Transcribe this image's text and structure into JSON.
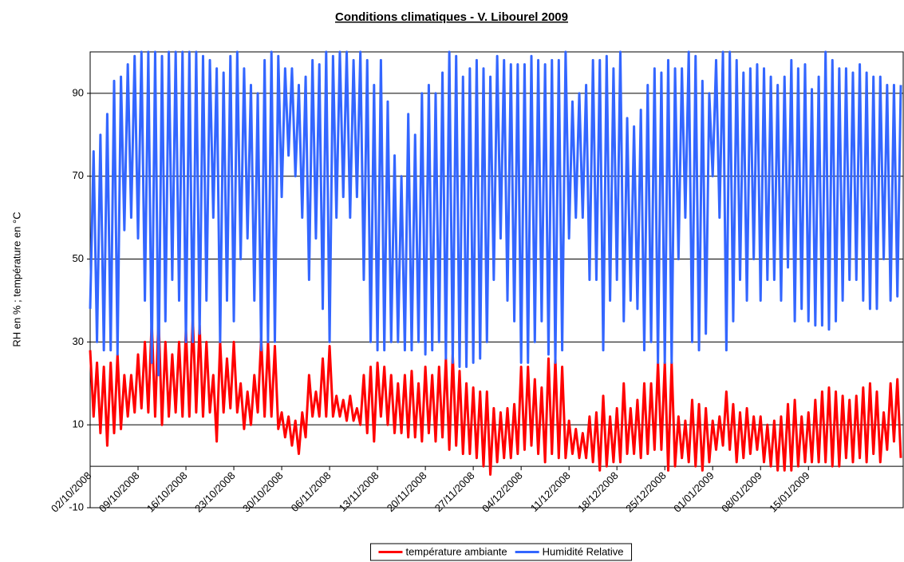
{
  "chart_data": {
    "type": "line",
    "title": "Conditions climatiques - V. Libourel 2009",
    "y_label": "RH en % ; température en °C",
    "x": [
      "02/10/2008",
      null,
      null,
      null,
      null,
      null,
      null,
      null,
      null,
      null,
      null,
      null,
      null,
      null,
      "09/10/2008",
      null,
      null,
      null,
      null,
      null,
      null,
      null,
      null,
      null,
      null,
      null,
      null,
      null,
      "16/10/2008",
      null,
      null,
      null,
      null,
      null,
      null,
      null,
      null,
      null,
      null,
      null,
      null,
      null,
      "23/10/2008",
      null,
      null,
      null,
      null,
      null,
      null,
      null,
      null,
      null,
      null,
      null,
      null,
      null,
      "30/10/2008",
      null,
      null,
      null,
      null,
      null,
      null,
      null,
      null,
      null,
      null,
      null,
      null,
      null,
      "06/11/2008",
      null,
      null,
      null,
      null,
      null,
      null,
      null,
      null,
      null,
      null,
      null,
      null,
      null,
      "13/11/2008",
      null,
      null,
      null,
      null,
      null,
      null,
      null,
      null,
      null,
      null,
      null,
      null,
      null,
      "20/11/2008",
      null,
      null,
      null,
      null,
      null,
      null,
      null,
      null,
      null,
      null,
      null,
      null,
      null,
      "27/11/2008",
      null,
      null,
      null,
      null,
      null,
      null,
      null,
      null,
      null,
      null,
      null,
      null,
      null,
      "04/12/2008",
      null,
      null,
      null,
      null,
      null,
      null,
      null,
      null,
      null,
      null,
      null,
      null,
      null,
      "11/12/2008",
      null,
      null,
      null,
      null,
      null,
      null,
      null,
      null,
      null,
      null,
      null,
      null,
      null,
      "18/12/2008",
      null,
      null,
      null,
      null,
      null,
      null,
      null,
      null,
      null,
      null,
      null,
      null,
      null,
      "25/12/2008",
      null,
      null,
      null,
      null,
      null,
      null,
      null,
      null,
      null,
      null,
      null,
      null,
      null,
      "01/01/2009",
      null,
      null,
      null,
      null,
      null,
      null,
      null,
      null,
      null,
      null,
      null,
      null,
      null,
      "08/01/2009",
      null,
      null,
      null,
      null,
      null,
      null,
      null,
      null,
      null,
      null,
      null,
      null,
      null,
      "15/01/2009",
      null,
      null,
      null,
      null,
      null,
      null,
      null,
      null,
      null,
      null,
      null,
      null,
      null,
      null,
      null,
      null,
      null,
      null,
      null,
      null,
      null,
      null,
      null,
      null,
      null,
      null,
      null
    ],
    "series": [
      {
        "name": "température ambiante",
        "color": "#ff0000",
        "values": [
          28,
          12,
          25,
          8,
          24,
          5,
          25,
          8,
          27,
          9,
          22,
          12,
          22,
          13,
          27,
          14,
          30,
          13,
          35,
          12,
          36,
          10,
          30,
          12,
          27,
          13,
          30,
          12,
          33,
          12,
          36,
          13,
          34,
          12,
          30,
          13,
          22,
          6,
          30,
          13,
          26,
          14,
          30,
          13,
          20,
          9,
          18,
          10,
          22,
          13,
          31,
          12,
          30,
          12,
          29,
          9,
          13,
          7,
          12,
          5,
          11,
          3,
          13,
          7,
          22,
          12,
          18,
          12,
          26,
          12,
          29,
          12,
          17,
          12,
          16,
          11,
          17,
          11,
          14,
          10,
          22,
          8,
          24,
          6,
          25,
          12,
          24,
          10,
          22,
          8,
          20,
          8,
          22,
          7,
          23,
          7,
          20,
          6,
          24,
          8,
          22,
          6,
          24,
          7,
          26,
          4,
          27,
          5,
          23,
          3,
          20,
          3,
          19,
          2,
          18,
          0,
          18,
          -2,
          14,
          1,
          13,
          2,
          14,
          2,
          15,
          3,
          24,
          4,
          24,
          5,
          21,
          3,
          19,
          1,
          26,
          3,
          26,
          2,
          24,
          2,
          11,
          3,
          9,
          2,
          8,
          2,
          12,
          1,
          13,
          -1,
          17,
          0,
          12,
          1,
          14,
          1,
          20,
          3,
          14,
          3,
          16,
          2,
          20,
          3,
          20,
          4,
          25,
          4,
          25,
          -1,
          25,
          0,
          12,
          2,
          11,
          1,
          16,
          0,
          15,
          -1,
          14,
          1,
          11,
          4,
          12,
          5,
          18,
          4,
          15,
          1,
          13,
          2,
          14,
          3,
          12,
          4,
          12,
          1,
          10,
          0,
          11,
          -1,
          12,
          -1,
          15,
          -1,
          16,
          0,
          12,
          1,
          13,
          1,
          16,
          1,
          18,
          1,
          19,
          0,
          18,
          0,
          17,
          2,
          16,
          1,
          17,
          2,
          19,
          1,
          20,
          3,
          18,
          1,
          13,
          4,
          20,
          6,
          21,
          2
        ]
      },
      {
        "name": "Humidité Relative",
        "color": "#3366ff",
        "values": [
          38,
          76,
          30,
          80,
          28,
          85,
          28,
          93,
          27,
          94,
          57,
          97,
          60,
          99,
          55,
          100,
          40,
          100,
          25,
          100,
          22,
          99,
          35,
          100,
          45,
          100,
          40,
          100,
          30,
          100,
          30,
          100,
          32,
          99,
          40,
          98,
          60,
          96,
          30,
          95,
          40,
          99,
          35,
          100,
          50,
          96,
          55,
          92,
          40,
          90,
          28,
          98,
          30,
          100,
          30,
          99,
          65,
          96,
          75,
          96,
          70,
          92,
          60,
          94,
          45,
          98,
          55,
          97,
          38,
          100,
          30,
          99,
          60,
          100,
          65,
          100,
          60,
          98,
          65,
          100,
          45,
          98,
          30,
          92,
          28,
          98,
          28,
          88,
          30,
          75,
          30,
          70,
          28,
          85,
          28,
          80,
          30,
          90,
          27,
          92,
          28,
          90,
          30,
          95,
          26,
          100,
          25,
          99,
          24,
          94,
          24,
          96,
          25,
          98,
          26,
          96,
          30,
          94,
          45,
          99,
          55,
          98,
          40,
          97,
          35,
          97,
          25,
          97,
          25,
          99,
          30,
          98,
          35,
          97,
          27,
          98,
          25,
          98,
          28,
          100,
          55,
          88,
          60,
          90,
          60,
          92,
          45,
          98,
          45,
          98,
          28,
          99,
          40,
          96,
          45,
          100,
          35,
          84,
          40,
          82,
          38,
          86,
          28,
          92,
          30,
          96,
          25,
          95,
          25,
          98,
          25,
          96,
          50,
          96,
          60,
          100,
          30,
          99,
          28,
          93,
          32,
          90,
          70,
          98,
          60,
          100,
          28,
          100,
          35,
          98,
          45,
          95,
          40,
          96,
          50,
          97,
          40,
          96,
          45,
          94,
          45,
          92,
          40,
          94,
          48,
          98,
          35,
          96,
          38,
          97,
          35,
          91,
          34,
          94,
          34,
          100,
          33,
          98,
          35,
          96,
          40,
          96,
          45,
          95,
          45,
          97,
          40,
          95,
          38,
          94,
          38,
          94,
          50,
          92,
          40,
          92,
          41,
          92
        ]
      }
    ],
    "ylim": [
      -10,
      100
    ],
    "yticks": [
      -10,
      10,
      30,
      50,
      70,
      90
    ],
    "grid": true,
    "legend": "bottom"
  }
}
